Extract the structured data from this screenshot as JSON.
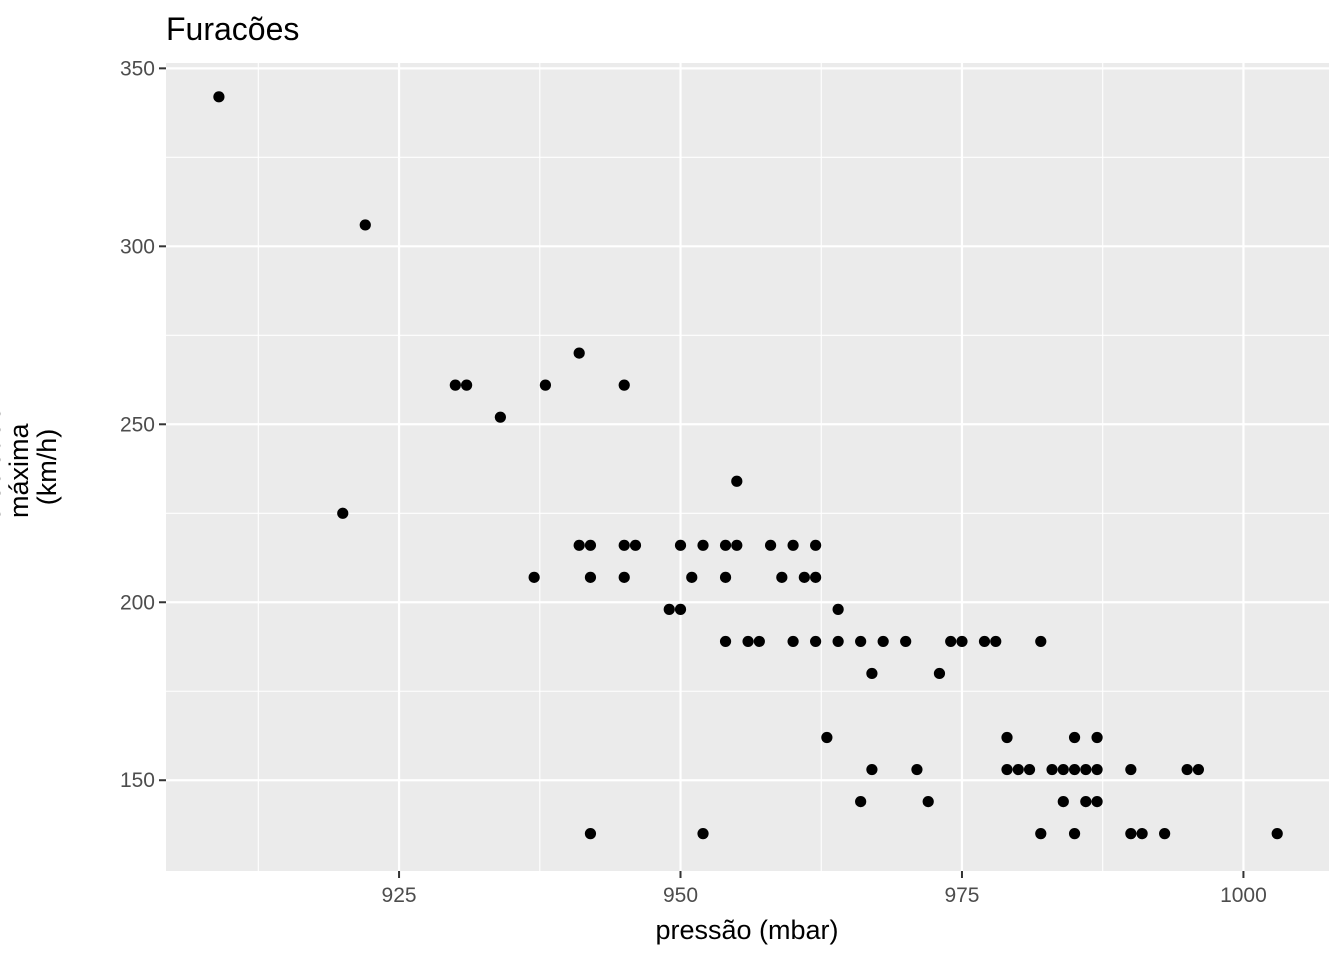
{
  "chart_data": {
    "type": "scatter",
    "title": "Furacões",
    "xlabel": "pressão (mbar)",
    "ylabel_lines": [
      "velocidade",
      "máxima",
      "(km/h)"
    ],
    "xlim": [
      904.3,
      1007.6
    ],
    "ylim": [
      124.5,
      351.5
    ],
    "x_ticks": [
      925,
      950,
      975,
      1000
    ],
    "x_tick_labels": [
      "925",
      "950",
      "975",
      "1000"
    ],
    "x_minor": [
      912.5,
      937.5,
      962.5,
      987.5
    ],
    "y_ticks": [
      150,
      200,
      250,
      300,
      350
    ],
    "y_tick_labels": [
      "150",
      "200",
      "250",
      "300",
      "350"
    ],
    "y_minor": [
      175,
      225,
      275,
      325
    ],
    "grid": true,
    "colors": {
      "panel": "#ebebeb",
      "grid": "#ffffff",
      "point": "#000000",
      "tick": "#333333"
    },
    "points": [
      {
        "x": 909,
        "y": 342
      },
      {
        "x": 920,
        "y": 225
      },
      {
        "x": 922,
        "y": 306
      },
      {
        "x": 930,
        "y": 261
      },
      {
        "x": 931,
        "y": 261
      },
      {
        "x": 934,
        "y": 252
      },
      {
        "x": 937,
        "y": 207
      },
      {
        "x": 938,
        "y": 261
      },
      {
        "x": 941,
        "y": 270
      },
      {
        "x": 941,
        "y": 216
      },
      {
        "x": 942,
        "y": 216
      },
      {
        "x": 942,
        "y": 207
      },
      {
        "x": 942,
        "y": 135
      },
      {
        "x": 945,
        "y": 261
      },
      {
        "x": 945,
        "y": 216
      },
      {
        "x": 945,
        "y": 207
      },
      {
        "x": 946,
        "y": 216
      },
      {
        "x": 949,
        "y": 198
      },
      {
        "x": 950,
        "y": 216
      },
      {
        "x": 950,
        "y": 198
      },
      {
        "x": 951,
        "y": 207
      },
      {
        "x": 952,
        "y": 216
      },
      {
        "x": 952,
        "y": 135
      },
      {
        "x": 954,
        "y": 216
      },
      {
        "x": 954,
        "y": 207
      },
      {
        "x": 954,
        "y": 189
      },
      {
        "x": 955,
        "y": 234
      },
      {
        "x": 955,
        "y": 216
      },
      {
        "x": 956,
        "y": 189
      },
      {
        "x": 957,
        "y": 189
      },
      {
        "x": 958,
        "y": 216
      },
      {
        "x": 959,
        "y": 207
      },
      {
        "x": 960,
        "y": 216
      },
      {
        "x": 960,
        "y": 189
      },
      {
        "x": 961,
        "y": 207
      },
      {
        "x": 962,
        "y": 216
      },
      {
        "x": 962,
        "y": 207
      },
      {
        "x": 962,
        "y": 189
      },
      {
        "x": 963,
        "y": 162
      },
      {
        "x": 964,
        "y": 198
      },
      {
        "x": 964,
        "y": 189
      },
      {
        "x": 966,
        "y": 189
      },
      {
        "x": 966,
        "y": 144
      },
      {
        "x": 967,
        "y": 180
      },
      {
        "x": 967,
        "y": 153
      },
      {
        "x": 968,
        "y": 189
      },
      {
        "x": 970,
        "y": 189
      },
      {
        "x": 971,
        "y": 153
      },
      {
        "x": 972,
        "y": 144
      },
      {
        "x": 973,
        "y": 180
      },
      {
        "x": 974,
        "y": 189
      },
      {
        "x": 975,
        "y": 189
      },
      {
        "x": 977,
        "y": 189
      },
      {
        "x": 978,
        "y": 189
      },
      {
        "x": 979,
        "y": 162
      },
      {
        "x": 979,
        "y": 153
      },
      {
        "x": 980,
        "y": 153
      },
      {
        "x": 981,
        "y": 153
      },
      {
        "x": 982,
        "y": 189
      },
      {
        "x": 982,
        "y": 135
      },
      {
        "x": 983,
        "y": 153
      },
      {
        "x": 984,
        "y": 153
      },
      {
        "x": 984,
        "y": 144
      },
      {
        "x": 985,
        "y": 162
      },
      {
        "x": 985,
        "y": 153
      },
      {
        "x": 985,
        "y": 135
      },
      {
        "x": 986,
        "y": 153
      },
      {
        "x": 986,
        "y": 144
      },
      {
        "x": 987,
        "y": 162
      },
      {
        "x": 987,
        "y": 153
      },
      {
        "x": 987,
        "y": 144
      },
      {
        "x": 990,
        "y": 153
      },
      {
        "x": 990,
        "y": 135
      },
      {
        "x": 991,
        "y": 135
      },
      {
        "x": 993,
        "y": 135
      },
      {
        "x": 995,
        "y": 153
      },
      {
        "x": 996,
        "y": 153
      },
      {
        "x": 1003,
        "y": 135
      }
    ]
  }
}
